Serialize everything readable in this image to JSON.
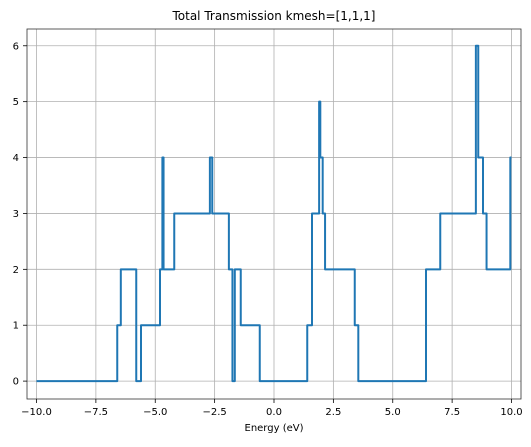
{
  "chart_data": {
    "type": "line",
    "title": "Total Transmission kmesh=[1,1,1]",
    "xlabel": "Energy (eV)",
    "ylabel": "",
    "xlim": [
      -10.4,
      10.4
    ],
    "ylim": [
      -0.32,
      6.3
    ],
    "grid": true,
    "xticks": [
      -10.0,
      -7.5,
      -5.0,
      -2.5,
      0.0,
      2.5,
      5.0,
      7.5,
      10.0
    ],
    "xtick_labels": [
      "−10.0",
      "−7.5",
      "−5.0",
      "−2.5",
      "0.0",
      "2.5",
      "5.0",
      "7.5",
      "10.0"
    ],
    "yticks": [
      0,
      1,
      2,
      3,
      4,
      5,
      6
    ],
    "ytick_labels": [
      "0",
      "1",
      "2",
      "3",
      "4",
      "5",
      "6"
    ],
    "line_color": "#1f77b4",
    "series": [
      {
        "x": [
          -10.0,
          -6.6,
          -6.6,
          -6.45,
          -6.45,
          -5.8,
          -5.8,
          -5.6,
          -5.6,
          -4.8,
          -4.8,
          -4.7,
          -4.7,
          -4.65,
          -4.65,
          -4.2,
          -4.2,
          -2.7,
          -2.7,
          -2.6,
          -2.6,
          -1.9,
          -1.9,
          -1.75,
          -1.75,
          -1.65,
          -1.65,
          -1.4,
          -1.4,
          -0.6,
          -0.6,
          1.4,
          1.4,
          1.6,
          1.6,
          1.9,
          1.9,
          1.95,
          1.95,
          2.05,
          2.05,
          2.15,
          2.15,
          3.4,
          3.4,
          3.55,
          3.55,
          6.4,
          6.4,
          7.0,
          7.0,
          8.5,
          8.5,
          8.6,
          8.6,
          8.8,
          8.8,
          8.95,
          8.95,
          9.95,
          9.95,
          10.0
        ],
        "y": [
          0,
          0,
          1,
          1,
          2,
          2,
          0,
          0,
          1,
          1,
          2,
          2,
          4,
          4,
          2,
          2,
          3,
          3,
          4,
          4,
          3,
          3,
          2,
          2,
          0,
          0,
          2,
          2,
          1,
          1,
          0,
          0,
          1,
          1,
          3,
          3,
          5,
          5,
          4,
          4,
          3,
          3,
          2,
          2,
          1,
          1,
          0,
          0,
          2,
          2,
          3,
          3,
          6,
          6,
          4,
          4,
          3,
          3,
          2,
          2,
          4,
          4
        ]
      }
    ]
  }
}
